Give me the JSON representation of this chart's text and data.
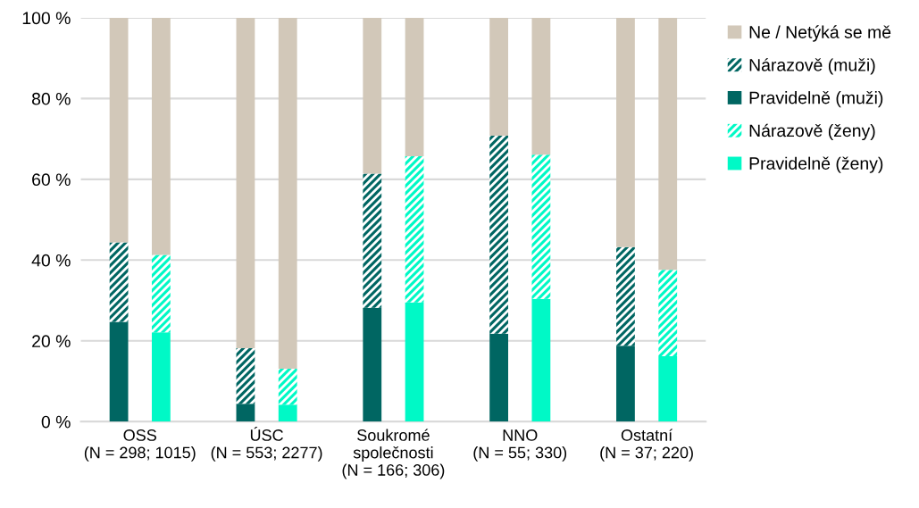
{
  "chart_data": {
    "type": "bar",
    "stacked": true,
    "categories": [
      "OSS\n(N = 298; 1015)",
      null,
      null,
      "ÚSC\n(N = 553; 2277)",
      null,
      null,
      "Soukromé\nspolečnosti\n(N = 166; 306)",
      null,
      null,
      "NNO\n(N = 55; 330)",
      null,
      null,
      "Ostatní\n(N = 37; 220)",
      null
    ],
    "series": [
      {
        "name": "Pravidelně (muži)",
        "color": "#006662",
        "values": [
          24.7,
          null,
          null,
          4.4,
          null,
          null,
          28.2,
          null,
          null,
          21.8,
          null,
          null,
          18.8,
          null
        ]
      },
      {
        "name": "Nárazově (muži)",
        "color": "#006662",
        "values": [
          19.7,
          null,
          null,
          13.8,
          null,
          null,
          33.2,
          null,
          null,
          49.0,
          null,
          null,
          24.4,
          null
        ]
      },
      {
        "name": "Pravidelně (ženy)",
        "color": "#00f9c6",
        "values": [
          null,
          22.1,
          null,
          null,
          4.2,
          null,
          null,
          29.5,
          null,
          null,
          30.4,
          null,
          null,
          16.2
        ]
      },
      {
        "name": "Nárazově (ženy)",
        "color": "#00f9c6",
        "values": [
          null,
          19.2,
          null,
          null,
          8.9,
          null,
          null,
          36.2,
          null,
          null,
          35.7,
          null,
          null,
          21.4
        ]
      },
      {
        "name": "Ne / Netýká se mě",
        "color": "#d2c8b9",
        "values": [
          55.6,
          58.7,
          null,
          81.8,
          86.9,
          null,
          38.6,
          34.3,
          null,
          29.2,
          33.9,
          null,
          56.8,
          62.4
        ]
      }
    ],
    "ylim": [
      0,
      100
    ],
    "yticks": [
      {
        "value": 0,
        "label": "0 %"
      },
      {
        "value": 20,
        "label": "20 %"
      },
      {
        "value": 40,
        "label": "40 %"
      },
      {
        "value": 60,
        "label": "60 %"
      },
      {
        "value": 80,
        "label": "80 %"
      },
      {
        "value": 100,
        "label": "100 %"
      }
    ],
    "grid": "y",
    "legend": "right"
  }
}
